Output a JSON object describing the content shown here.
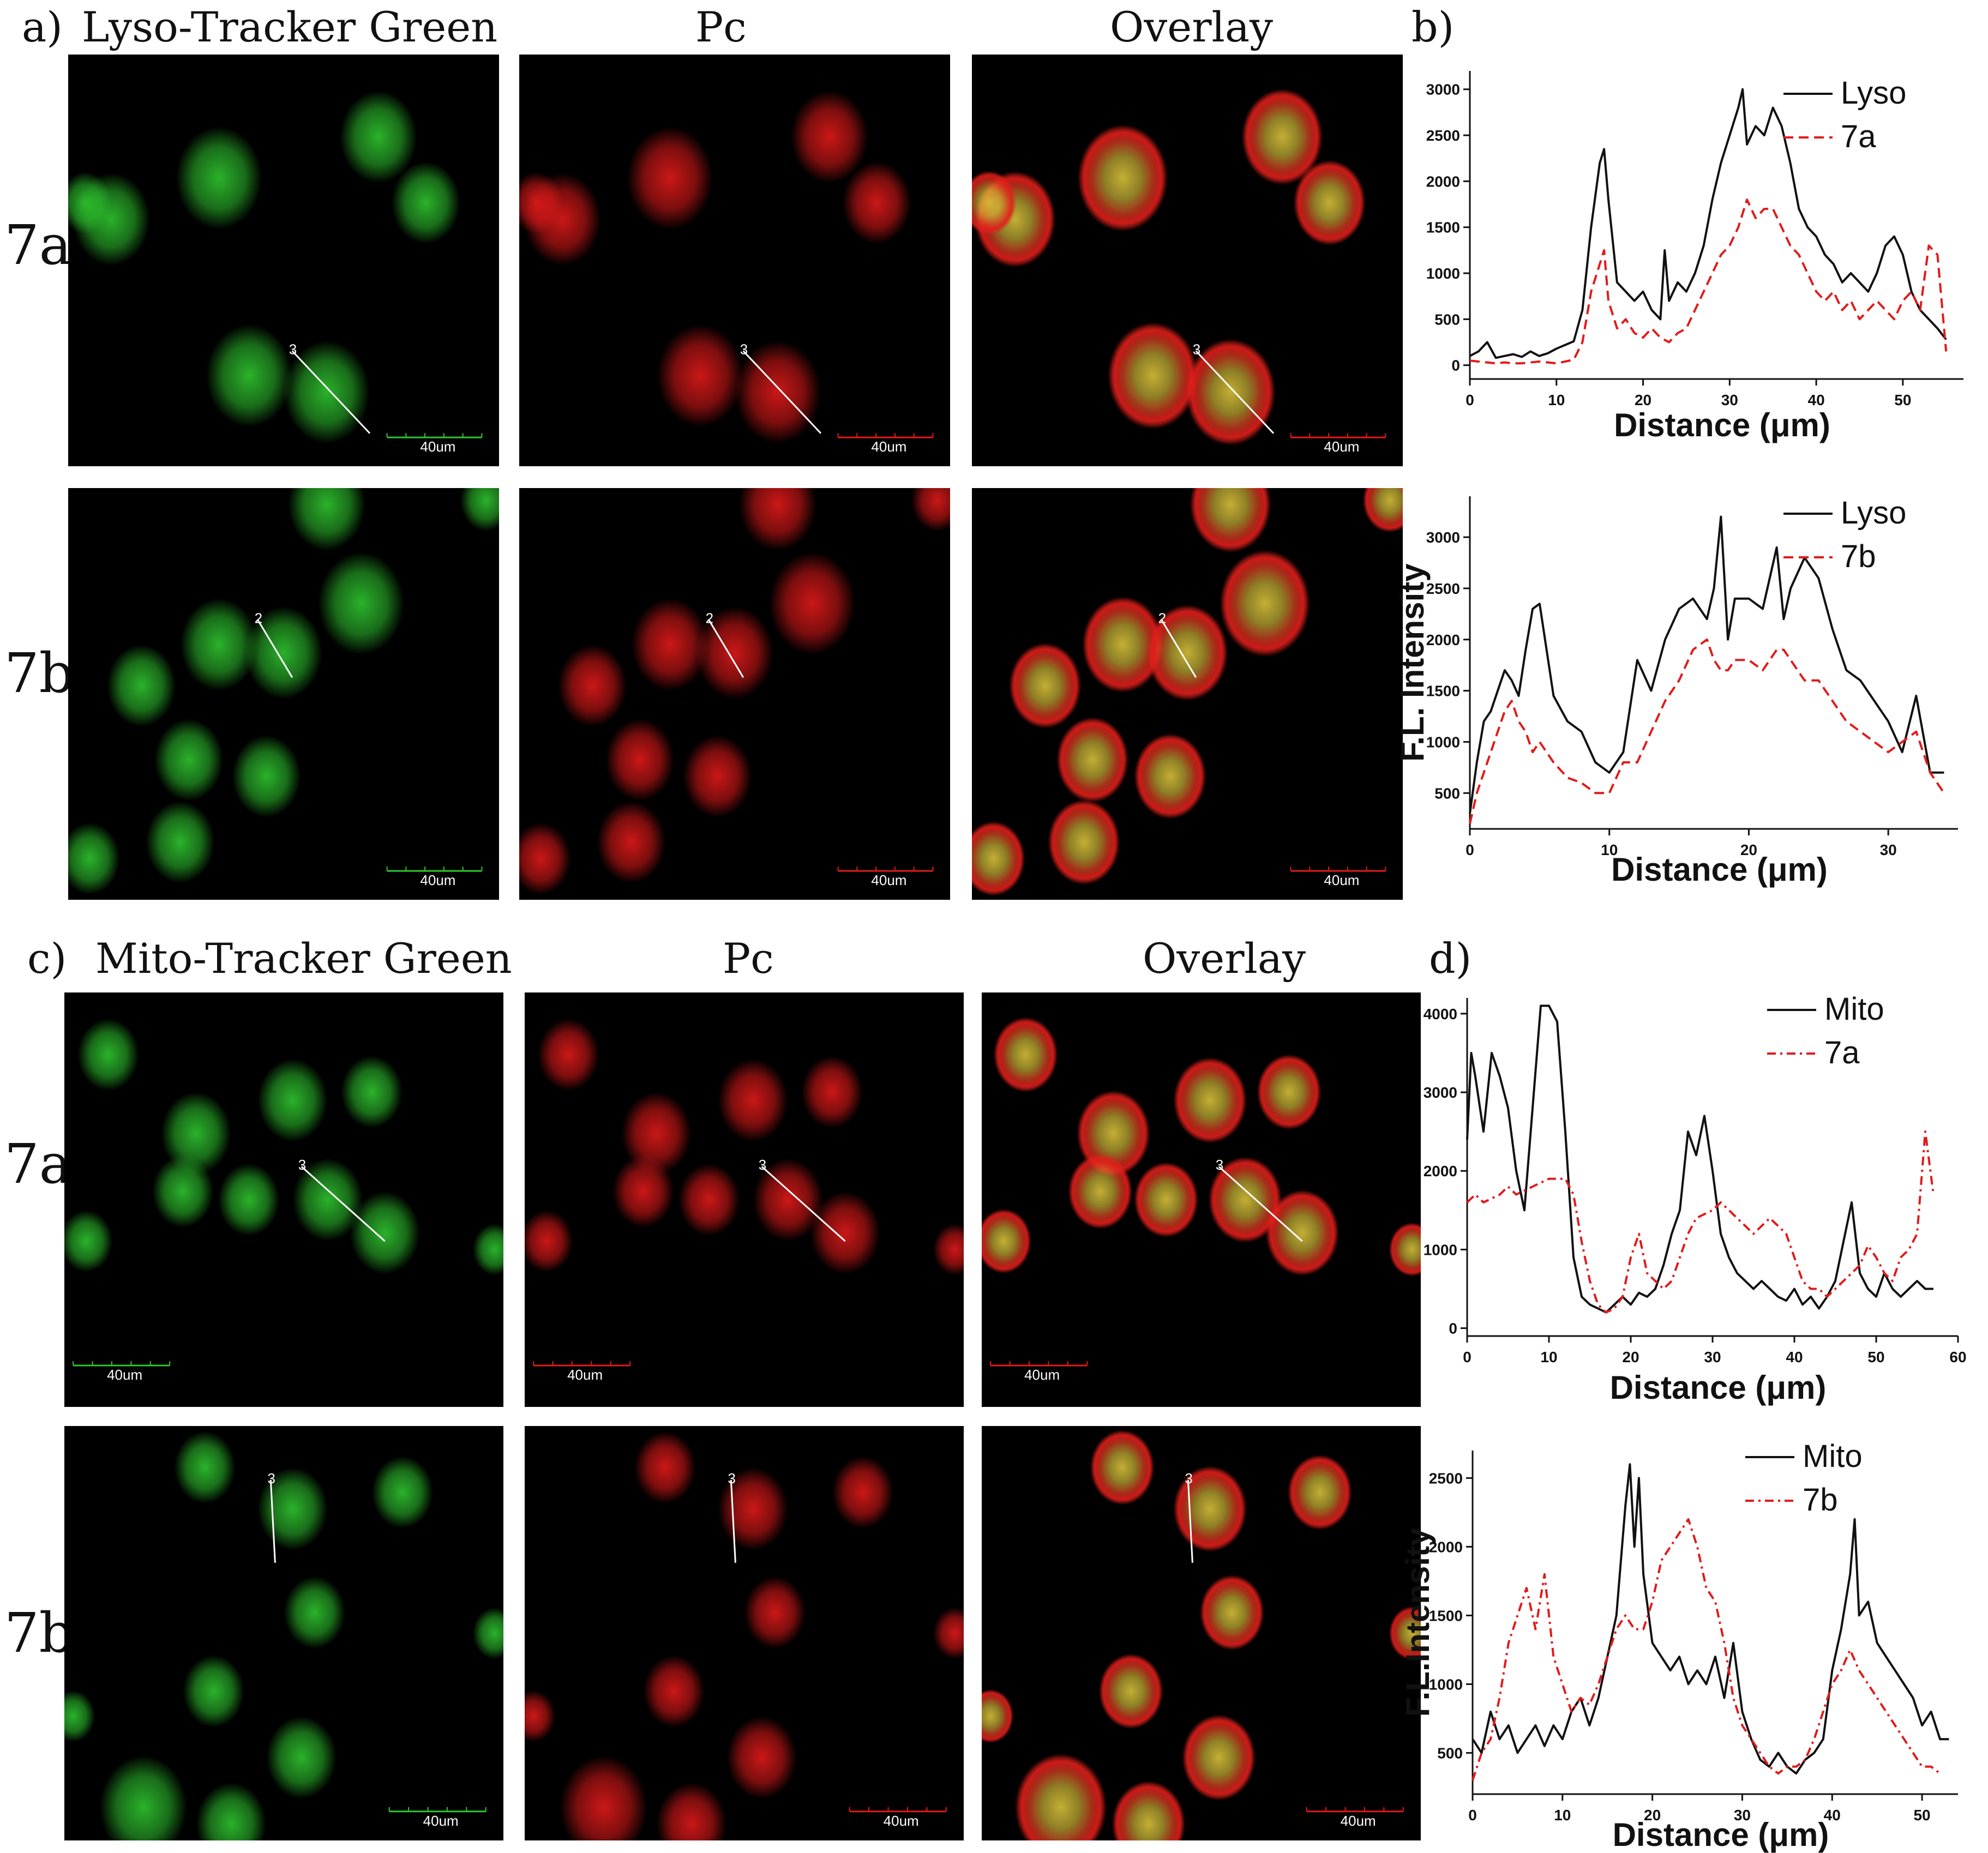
{
  "panels": {
    "a": {
      "letter": "a)",
      "col1": "Lyso-Tracker Green",
      "col2": "Pc",
      "col3": "Overlay"
    },
    "b": {
      "letter": "b)"
    },
    "c": {
      "letter": "c)",
      "col1": "Mito-Tracker Green",
      "col2": "Pc",
      "col3": "Overlay"
    },
    "d": {
      "letter": "d)"
    }
  },
  "row_labels": {
    "r1": "7a",
    "r2": "7b",
    "r3": "7a",
    "r4": "7b"
  },
  "scale_bar_label": "40um",
  "line_profile_labels": {
    "r1": "3",
    "r2": "2",
    "r3": "3",
    "r4": "3"
  },
  "colors": {
    "green_channel": "#2fc62f",
    "red_channel": "#e21a1a",
    "overlay": "#d9c23a",
    "probe_line": "#e21a1a"
  },
  "chart_data": [
    {
      "id": "b_top",
      "type": "line",
      "xlabel": "Distance (μm)",
      "ylabel": "",
      "xlim": [
        0,
        57
      ],
      "ylim": [
        -150,
        3200
      ],
      "xticks": [
        0,
        10,
        20,
        30,
        40,
        50
      ],
      "yticks": [
        0,
        500,
        1000,
        1500,
        2000,
        2500,
        3000
      ],
      "legend_position": "top-right",
      "series": [
        {
          "name": "Lyso",
          "style": "solid",
          "color": "#111111",
          "x": [
            0,
            1,
            2,
            3,
            4,
            5,
            6,
            7,
            8,
            9,
            10,
            11,
            12,
            13,
            14,
            15,
            15.5,
            16,
            17,
            18,
            19,
            20,
            21,
            22,
            22.5,
            23,
            24,
            25,
            26,
            27,
            28,
            29,
            30,
            31,
            31.5,
            32,
            33,
            34,
            35,
            36,
            37,
            38,
            39,
            40,
            41,
            42,
            43,
            44,
            45,
            46,
            47,
            48,
            49,
            50,
            51,
            52,
            53,
            54,
            55
          ],
          "y": [
            100,
            150,
            250,
            80,
            100,
            120,
            90,
            150,
            100,
            130,
            180,
            220,
            260,
            600,
            1500,
            2200,
            2350,
            1800,
            900,
            800,
            700,
            800,
            600,
            500,
            1250,
            700,
            900,
            800,
            1000,
            1300,
            1800,
            2200,
            2500,
            2800,
            3000,
            2400,
            2600,
            2500,
            2800,
            2600,
            2200,
            1700,
            1500,
            1400,
            1200,
            1100,
            900,
            1000,
            900,
            800,
            1000,
            1300,
            1400,
            1200,
            800,
            600,
            500,
            400,
            280
          ]
        },
        {
          "name": "7a",
          "style": "dashed",
          "color": "#e21a1a",
          "x": [
            0,
            1,
            2,
            3,
            4,
            5,
            6,
            7,
            8,
            9,
            10,
            11,
            12,
            13,
            14,
            15,
            15.5,
            16,
            17,
            18,
            19,
            20,
            21,
            22,
            23,
            24,
            25,
            26,
            27,
            28,
            29,
            30,
            31,
            32,
            33,
            34,
            35,
            36,
            37,
            38,
            39,
            40,
            41,
            42,
            43,
            44,
            45,
            46,
            47,
            48,
            49,
            50,
            51,
            52,
            53,
            54,
            55
          ],
          "y": [
            50,
            40,
            30,
            20,
            30,
            20,
            20,
            30,
            40,
            30,
            20,
            40,
            60,
            250,
            800,
            1100,
            1250,
            700,
            400,
            500,
            350,
            300,
            400,
            300,
            250,
            350,
            400,
            600,
            800,
            1000,
            1200,
            1300,
            1500,
            1800,
            1600,
            1700,
            1700,
            1500,
            1300,
            1200,
            1000,
            800,
            700,
            800,
            600,
            700,
            500,
            600,
            700,
            600,
            500,
            700,
            800,
            600,
            1300,
            1200,
            150
          ]
        }
      ]
    },
    {
      "id": "b_bottom",
      "type": "line",
      "xlabel": "Distance (μm)",
      "ylabel": "F.L. Intensity",
      "xlim": [
        0,
        35
      ],
      "ylim": [
        150,
        3400
      ],
      "xticks": [
        0,
        10,
        20,
        30
      ],
      "yticks": [
        500,
        1000,
        1500,
        2000,
        2500,
        3000
      ],
      "legend_position": "top-right",
      "series": [
        {
          "name": "Lyso",
          "style": "solid",
          "color": "#111111",
          "x": [
            0,
            0.5,
            1,
            1.5,
            2,
            2.5,
            3,
            3.5,
            4,
            4.5,
            5,
            6,
            7,
            8,
            9,
            10,
            11,
            12,
            13,
            14,
            15,
            16,
            17,
            17.5,
            18,
            18.5,
            19,
            20,
            21,
            22,
            22.5,
            23,
            24,
            25,
            26,
            27,
            28,
            29,
            30,
            31,
            32,
            33,
            34
          ],
          "y": [
            300,
            800,
            1200,
            1300,
            1500,
            1700,
            1600,
            1450,
            1900,
            2300,
            2350,
            1450,
            1200,
            1100,
            800,
            700,
            900,
            1800,
            1500,
            2000,
            2300,
            2400,
            2200,
            2500,
            3200,
            2000,
            2400,
            2400,
            2300,
            2900,
            2200,
            2500,
            2800,
            2600,
            2100,
            1700,
            1600,
            1400,
            1200,
            900,
            1450,
            700,
            700
          ]
        },
        {
          "name": "7b",
          "style": "dashed",
          "color": "#e21a1a",
          "x": [
            0,
            0.5,
            1,
            1.5,
            2,
            2.5,
            3,
            3.5,
            4,
            4.5,
            5,
            6,
            7,
            8,
            9,
            10,
            11,
            12,
            13,
            14,
            15,
            16,
            17,
            17.5,
            18,
            18.5,
            19,
            20,
            21,
            22,
            22.5,
            23,
            24,
            25,
            26,
            27,
            28,
            29,
            30,
            31,
            32,
            33,
            34
          ],
          "y": [
            200,
            500,
            700,
            900,
            1100,
            1300,
            1400,
            1200,
            1100,
            900,
            1000,
            800,
            650,
            600,
            500,
            500,
            800,
            800,
            1100,
            1400,
            1600,
            1900,
            2000,
            1800,
            1700,
            1700,
            1800,
            1800,
            1700,
            1900,
            1900,
            1800,
            1600,
            1600,
            1400,
            1200,
            1100,
            1000,
            900,
            1000,
            1100,
            700,
            500
          ]
        }
      ]
    },
    {
      "id": "d_top",
      "type": "line",
      "xlabel": "Distance (μm)",
      "ylabel": "",
      "xlim": [
        0,
        60
      ],
      "ylim": [
        -100,
        4200
      ],
      "xticks": [
        0,
        10,
        20,
        30,
        40,
        50,
        60
      ],
      "yticks": [
        0,
        1000,
        2000,
        3000,
        4000
      ],
      "legend_position": "top-right",
      "series": [
        {
          "name": "Mito",
          "style": "solid",
          "color": "#111111",
          "x": [
            0,
            0.5,
            1,
            2,
            3,
            4,
            5,
            6,
            7,
            8,
            9,
            10,
            11,
            12,
            13,
            14,
            15,
            16,
            17,
            18,
            19,
            20,
            21,
            22,
            23,
            24,
            25,
            26,
            27,
            28,
            29,
            30,
            31,
            32,
            33,
            34,
            35,
            36,
            37,
            38,
            39,
            40,
            41,
            42,
            43,
            44,
            45,
            46,
            47,
            48,
            49,
            50,
            51,
            52,
            53,
            54,
            55,
            56,
            57
          ],
          "y": [
            2400,
            3500,
            3200,
            2500,
            3500,
            3200,
            2800,
            2000,
            1500,
            2800,
            4100,
            4100,
            3900,
            2500,
            900,
            400,
            300,
            250,
            200,
            300,
            400,
            300,
            450,
            400,
            500,
            800,
            1200,
            1500,
            2500,
            2200,
            2700,
            2000,
            1200,
            900,
            700,
            600,
            500,
            600,
            500,
            400,
            350,
            500,
            300,
            400,
            250,
            400,
            600,
            1100,
            1600,
            700,
            500,
            400,
            700,
            500,
            400,
            500,
            600,
            500,
            500
          ]
        },
        {
          "name": "7a",
          "style": "dashdot",
          "color": "#e21a1a",
          "x": [
            0,
            1,
            2,
            3,
            4,
            5,
            6,
            7,
            8,
            9,
            10,
            11,
            12,
            13,
            14,
            15,
            16,
            17,
            18,
            19,
            20,
            21,
            22,
            23,
            24,
            25,
            26,
            27,
            28,
            29,
            30,
            31,
            32,
            33,
            34,
            35,
            36,
            37,
            38,
            39,
            40,
            41,
            42,
            43,
            44,
            45,
            46,
            47,
            48,
            49,
            50,
            51,
            52,
            53,
            54,
            55,
            56,
            57
          ],
          "y": [
            1600,
            1700,
            1600,
            1650,
            1700,
            1800,
            1700,
            1750,
            1800,
            1850,
            1900,
            1900,
            1900,
            1700,
            1100,
            600,
            300,
            200,
            250,
            400,
            900,
            1200,
            700,
            600,
            500,
            600,
            900,
            1200,
            1400,
            1450,
            1500,
            1600,
            1500,
            1400,
            1300,
            1200,
            1300,
            1400,
            1300,
            1200,
            900,
            600,
            500,
            500,
            400,
            500,
            600,
            700,
            800,
            1050,
            900,
            700,
            600,
            900,
            1000,
            1200,
            2500,
            1700
          ]
        }
      ]
    },
    {
      "id": "d_bottom",
      "type": "line",
      "xlabel": "Distance (μm)",
      "ylabel": "F.L.Intensity",
      "xlim": [
        0,
        54
      ],
      "ylim": [
        200,
        2700
      ],
      "xticks": [
        0,
        10,
        20,
        30,
        40,
        50
      ],
      "yticks": [
        500,
        1000,
        1500,
        2000,
        2500
      ],
      "legend_position": "top-right",
      "series": [
        {
          "name": "Mito",
          "style": "solid",
          "color": "#111111",
          "x": [
            0,
            1,
            2,
            3,
            4,
            5,
            6,
            7,
            8,
            9,
            10,
            11,
            12,
            13,
            14,
            15,
            16,
            17,
            17.5,
            18,
            18.5,
            19,
            20,
            21,
            22,
            23,
            24,
            25,
            26,
            27,
            28,
            29,
            30,
            31,
            32,
            33,
            34,
            35,
            36,
            37,
            38,
            39,
            40,
            41,
            42,
            42.5,
            43,
            44,
            45,
            46,
            47,
            48,
            49,
            50,
            51,
            52,
            53
          ],
          "y": [
            600,
            500,
            800,
            600,
            700,
            500,
            600,
            700,
            550,
            700,
            600,
            800,
            900,
            700,
            900,
            1200,
            1500,
            2300,
            2600,
            2000,
            2500,
            1800,
            1300,
            1200,
            1100,
            1200,
            1000,
            1100,
            1000,
            1200,
            900,
            1300,
            800,
            600,
            450,
            400,
            500,
            400,
            350,
            450,
            500,
            600,
            1100,
            1400,
            1800,
            2200,
            1500,
            1600,
            1300,
            1200,
            1100,
            1000,
            900,
            700,
            800,
            600,
            600
          ]
        },
        {
          "name": "7b",
          "style": "dashdot",
          "color": "#e21a1a",
          "x": [
            0,
            1,
            2,
            3,
            4,
            5,
            6,
            7,
            8,
            9,
            10,
            11,
            12,
            13,
            14,
            15,
            16,
            17,
            18,
            19,
            20,
            21,
            22,
            23,
            24,
            25,
            26,
            27,
            28,
            29,
            30,
            31,
            32,
            33,
            34,
            35,
            36,
            37,
            38,
            39,
            40,
            41,
            42,
            43,
            44,
            45,
            46,
            47,
            48,
            49,
            50,
            51,
            52
          ],
          "y": [
            300,
            500,
            600,
            900,
            1300,
            1500,
            1700,
            1400,
            1800,
            1200,
            1000,
            800,
            900,
            850,
            1000,
            1200,
            1400,
            1500,
            1400,
            1400,
            1600,
            1900,
            2000,
            2100,
            2200,
            2000,
            1700,
            1600,
            1300,
            900,
            700,
            600,
            500,
            400,
            350,
            400,
            400,
            450,
            600,
            800,
            1000,
            1100,
            1250,
            1100,
            1000,
            900,
            800,
            700,
            600,
            500,
            400,
            400,
            350
          ]
        }
      ]
    }
  ]
}
